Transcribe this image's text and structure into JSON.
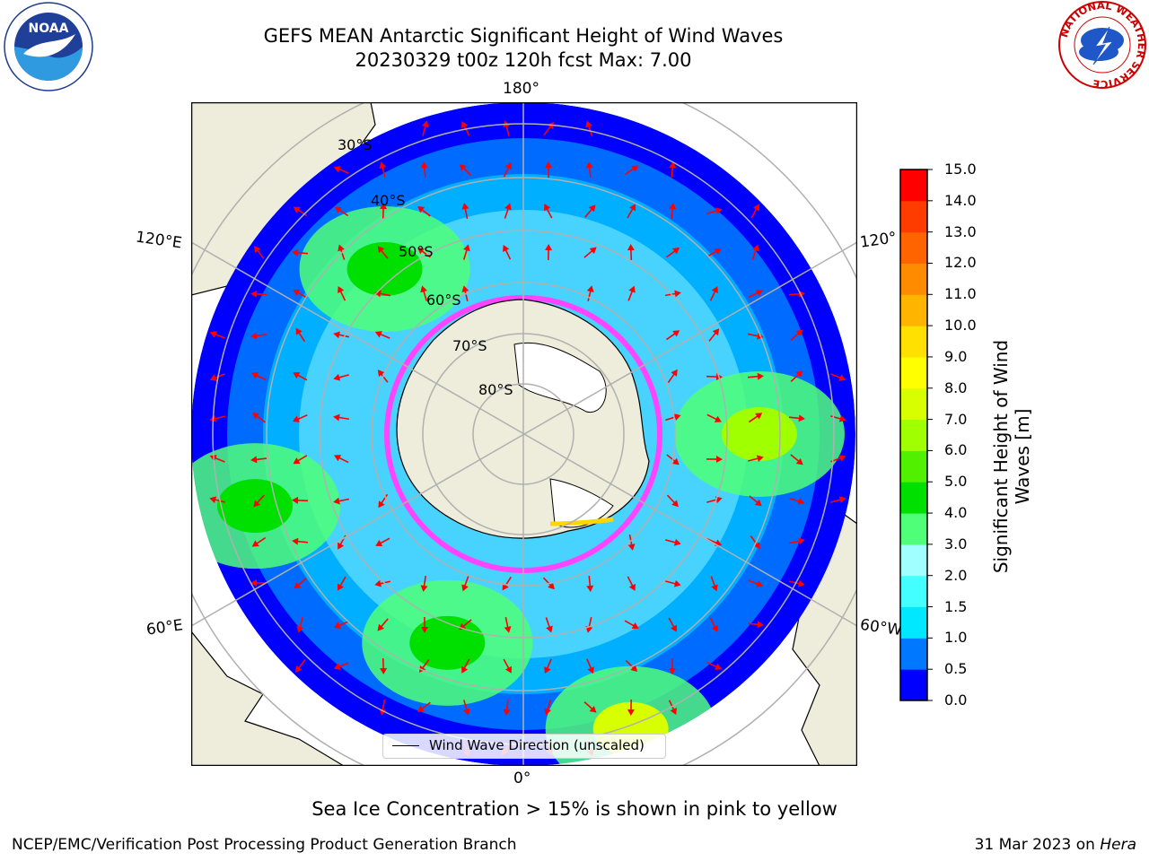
{
  "title": {
    "line1": "GEFS MEAN Antarctic Significant Height of Wind Waves",
    "line2": "20230329 t00z 120h fcst   Max: 7.00"
  },
  "map": {
    "projection": "south-polar-stereographic",
    "lon_labels": {
      "top": "180°",
      "bottom": "0°",
      "left_upper": "120°E",
      "left_lower": "60°E",
      "right_upper": "120°",
      "right_lower": "60°W"
    },
    "lat_labels": [
      "30°S",
      "40°S",
      "50°S",
      "60°S",
      "70°S",
      "80°S"
    ],
    "legend": "Wind Wave Direction (unscaled)",
    "arrow_color": "#ff0000",
    "land_color": "#eeecda",
    "sea_ice_colors": [
      "#ff44ff",
      "#ffd700",
      "#ffffff"
    ],
    "wave_regions": [
      {
        "lon": -90,
        "lat": -53,
        "value": 6.5
      },
      {
        "lon": -20,
        "lat": -42,
        "value": 7.0
      },
      {
        "lon": 75,
        "lat": -47,
        "value": 4.5
      },
      {
        "lon": 140,
        "lat": -56,
        "value": 4.0
      },
      {
        "lon": 20,
        "lat": -55,
        "value": 4.0
      }
    ]
  },
  "colorbar": {
    "label": "Significant Height of Wind Waves [m]",
    "label_line1": "Significant Height of Wind",
    "label_line2": "Waves [m]",
    "ticks": [
      "0.0",
      "0.5",
      "1.0",
      "1.5",
      "2.0",
      "3.0",
      "4.0",
      "5.0",
      "6.0",
      "7.0",
      "8.0",
      "9.0",
      "10.0",
      "11.0",
      "12.0",
      "13.0",
      "14.0",
      "15.0"
    ],
    "colors": [
      "#0000ff",
      "#0078ff",
      "#00e8ff",
      "#44ffff",
      "#a0ffff",
      "#50ff78",
      "#00e000",
      "#50f000",
      "#a0ff00",
      "#d8ff00",
      "#ffff00",
      "#ffe000",
      "#ffb400",
      "#ff8c00",
      "#ff6400",
      "#ff3c00",
      "#ff0000"
    ]
  },
  "footer": {
    "note": "Sea Ice Concentration > 15% is shown in pink to yellow",
    "credit_left": "NCEP/EMC/Verification Post Processing Product Generation Branch",
    "credit_date": "31 Mar 2023 on ",
    "credit_host": "Hera"
  },
  "logos": {
    "noaa": "NOAA",
    "nws_ring": "NATIONAL WEATHER SERVICE"
  }
}
